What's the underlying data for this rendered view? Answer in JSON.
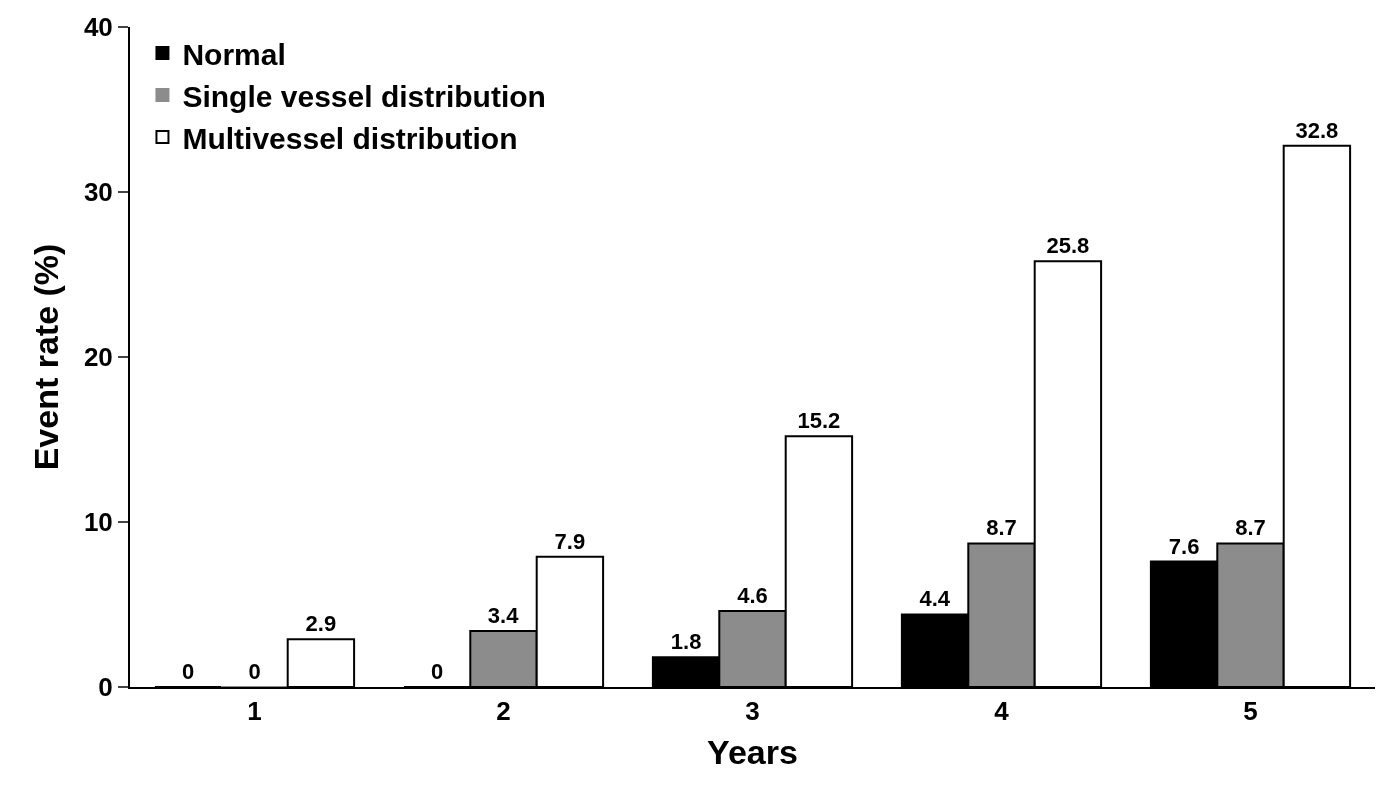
{
  "chart_data": {
    "type": "bar",
    "xlabel": "Years",
    "ylabel": "Event rate (%)",
    "categories": [
      "1",
      "2",
      "3",
      "4",
      "5"
    ],
    "series": [
      {
        "name": "Normal",
        "color": "#000000",
        "values": [
          0,
          0,
          1.8,
          4.4,
          7.6
        ]
      },
      {
        "name": "Single vessel distribution",
        "color": "#8c8c8c",
        "values": [
          0,
          3.4,
          4.6,
          8.7,
          8.7
        ]
      },
      {
        "name": "Multivessel distribution",
        "color": "#ffffff",
        "values": [
          2.9,
          7.9,
          15.2,
          25.8,
          32.8
        ]
      }
    ],
    "ylim": [
      0,
      40
    ],
    "yticks": [
      0,
      10,
      20,
      30,
      40
    ],
    "legend": "top left",
    "data_labels": true
  }
}
